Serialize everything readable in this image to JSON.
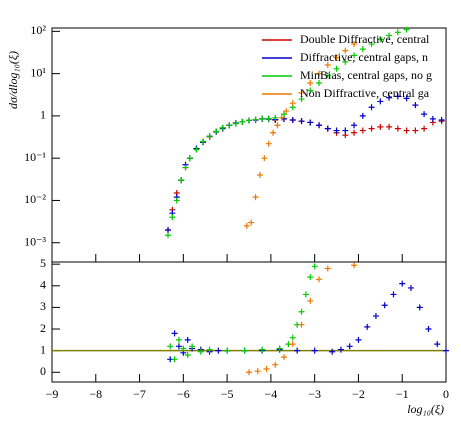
{
  "chart_data": [
    {
      "type": "scatter",
      "ylabel": "dσ/dlog₁₀(ξ)",
      "log_y": true,
      "xlim": [
        -9,
        0
      ],
      "ylim": [
        0.00035,
        120
      ],
      "yticks": [
        {
          "value": 100,
          "label": "10²"
        },
        {
          "value": 10,
          "label": "10¹"
        },
        {
          "value": 1,
          "label": "1"
        },
        {
          "value": 0.1,
          "label": "10⁻¹"
        },
        {
          "value": 0.01,
          "label": "10⁻²"
        },
        {
          "value": 0.001,
          "label": "10⁻³"
        }
      ],
      "legend": "top-right",
      "series": [
        {
          "name": "Double Diffractive, central",
          "color": "#cc0000",
          "x": [
            -6.35,
            -6.25,
            -6.15,
            -6.05,
            -5.95,
            -5.85,
            -5.7,
            -5.55,
            -5.4,
            -5.25,
            -5.1,
            -4.95,
            -4.8,
            -4.65,
            -4.5,
            -4.35,
            -4.2,
            -4.05,
            -3.9,
            -3.7,
            -3.5,
            -3.3,
            -3.1,
            -2.9,
            -2.7,
            -2.5,
            -2.3,
            -2.1,
            -1.9,
            -1.7,
            -1.5,
            -1.3,
            -1.1,
            -0.9,
            -0.7,
            -0.5,
            -0.3,
            -0.1
          ],
          "values": [
            0.002,
            0.006,
            0.015,
            0.03,
            0.06,
            0.1,
            0.16,
            0.24,
            0.32,
            0.42,
            0.52,
            0.6,
            0.66,
            0.72,
            0.78,
            0.82,
            0.85,
            0.85,
            0.8,
            0.85,
            0.8,
            0.75,
            0.7,
            0.6,
            0.5,
            0.4,
            0.35,
            0.4,
            0.45,
            0.5,
            0.55,
            0.55,
            0.5,
            0.45,
            0.45,
            0.5,
            0.7,
            0.75
          ]
        },
        {
          "name": "Diffractive, central gaps, n",
          "color": "#0000cc",
          "x": [
            -6.35,
            -6.25,
            -6.15,
            -6.05,
            -5.95,
            -5.85,
            -5.7,
            -5.55,
            -5.4,
            -5.25,
            -5.1,
            -4.95,
            -4.8,
            -4.65,
            -4.5,
            -4.35,
            -4.2,
            -4.05,
            -3.9,
            -3.7,
            -3.5,
            -3.3,
            -3.1,
            -2.9,
            -2.7,
            -2.5,
            -2.3,
            -2.1,
            -1.9,
            -1.7,
            -1.5,
            -1.3,
            -1.1,
            -0.9,
            -0.7,
            -0.5,
            -0.3,
            -0.1
          ],
          "values": [
            0.002,
            0.005,
            0.012,
            0.03,
            0.07,
            0.1,
            0.17,
            0.24,
            0.33,
            0.42,
            0.5,
            0.6,
            0.68,
            0.72,
            0.78,
            0.8,
            0.85,
            0.84,
            0.82,
            0.85,
            0.8,
            0.75,
            0.7,
            0.6,
            0.5,
            0.45,
            0.45,
            0.6,
            1.0,
            1.6,
            2.2,
            2.7,
            2.9,
            2.6,
            1.8,
            1.1,
            0.85,
            0.8
          ]
        },
        {
          "name": "MinBias, central gaps, no g",
          "color": "#00cc00",
          "x": [
            -6.35,
            -6.25,
            -6.15,
            -6.05,
            -5.95,
            -5.85,
            -5.7,
            -5.55,
            -5.4,
            -5.25,
            -5.1,
            -4.95,
            -4.8,
            -4.65,
            -4.5,
            -4.35,
            -4.2,
            -4.05,
            -3.9,
            -3.7,
            -3.5,
            -3.3,
            -3.1,
            -2.9,
            -2.7,
            -2.5,
            -2.3,
            -2.1,
            -1.9,
            -1.7,
            -1.5,
            -1.3,
            -1.1,
            -0.9
          ],
          "values": [
            0.0015,
            0.004,
            0.01,
            0.03,
            0.06,
            0.1,
            0.16,
            0.25,
            0.33,
            0.43,
            0.52,
            0.6,
            0.66,
            0.72,
            0.78,
            0.82,
            0.86,
            0.86,
            0.9,
            1.1,
            1.6,
            2.5,
            4,
            6,
            9,
            13,
            19,
            27,
            38,
            50,
            65,
            80,
            95,
            110
          ]
        },
        {
          "name": "Non Diffractive, central ga",
          "color": "#ee7700",
          "x": [
            -4.55,
            -4.45,
            -4.35,
            -4.25,
            -4.15,
            -4.05,
            -3.95,
            -3.85,
            -3.75,
            -3.65,
            -3.5,
            -3.3,
            -3.1,
            -2.9,
            -2.7,
            -2.5,
            -2.3,
            -2.1
          ],
          "values": [
            0.0025,
            0.003,
            0.012,
            0.04,
            0.1,
            0.22,
            0.4,
            0.6,
            0.9,
            1.3,
            2,
            3.5,
            6,
            10,
            16,
            24,
            35,
            50
          ]
        }
      ]
    },
    {
      "type": "scatter",
      "xlabel": "log₁₀(ξ)",
      "xlim": [
        -9,
        0
      ],
      "ylim": [
        -0.45,
        5.1
      ],
      "xticks": [
        {
          "value": -9,
          "label": "−9"
        },
        {
          "value": -8,
          "label": "−8"
        },
        {
          "value": -7,
          "label": "−7"
        },
        {
          "value": -6,
          "label": "−6"
        },
        {
          "value": -5,
          "label": "−5"
        },
        {
          "value": -4,
          "label": "−4"
        },
        {
          "value": -3,
          "label": "−3"
        },
        {
          "value": -2,
          "label": "−2"
        },
        {
          "value": -1,
          "label": "−1"
        },
        0
      ],
      "yticks": [
        0,
        1,
        2,
        3,
        4,
        5
      ],
      "series": [
        {
          "color": "#808000",
          "style": "line",
          "x": [
            -9,
            0
          ],
          "values": [
            1,
            1
          ]
        },
        {
          "color": "#0000cc",
          "x": [
            -6.3,
            -6.2,
            -6.1,
            -6.0,
            -5.9,
            -5.8,
            -5.6,
            -5.4,
            -5.2,
            -5,
            -4.6,
            -4.2,
            -3.8,
            -3.4,
            -3,
            -2.6,
            -2.4,
            -2.2,
            -2,
            -1.8,
            -1.6,
            -1.4,
            -1.2,
            -1,
            -0.8,
            -0.6,
            -0.4,
            -0.2,
            0
          ],
          "values": [
            0.6,
            1.8,
            1.2,
            0.9,
            1.5,
            1.1,
            1.05,
            0.95,
            1,
            1,
            1,
            1,
            1.05,
            1,
            1,
            0.95,
            1.05,
            1.2,
            1.5,
            2.1,
            2.6,
            3.1,
            3.6,
            4.1,
            3.9,
            3,
            2,
            1.3,
            1
          ]
        },
        {
          "color": "#00cc00",
          "x": [
            -6.3,
            -6.2,
            -6.1,
            -6,
            -5.9,
            -5.8,
            -5.6,
            -5.4,
            -5,
            -4.6,
            -4.2,
            -3.8,
            -3.6,
            -3.5,
            -3.4,
            -3.3,
            -3.2,
            -3.1,
            -3
          ],
          "values": [
            1.2,
            0.6,
            1.5,
            1.1,
            0.8,
            1.2,
            0.95,
            1.05,
            1,
            1,
            1.05,
            1.1,
            1.3,
            1.6,
            2.2,
            2.8,
            3.6,
            4.4,
            4.9
          ]
        },
        {
          "color": "#ee7700",
          "x": [
            -4.5,
            -4.3,
            -4.1,
            -3.9,
            -3.7,
            -3.5,
            -3.3,
            -3.1,
            -2.9,
            -2.7,
            -2.1
          ],
          "values": [
            0,
            0.05,
            0.15,
            0.35,
            0.7,
            1.3,
            2.2,
            3.3,
            4.3,
            4.8,
            4.95
          ]
        }
      ]
    }
  ]
}
